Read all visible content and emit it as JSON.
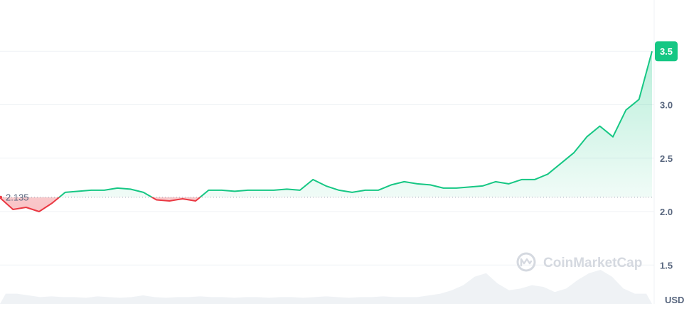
{
  "chart_data": {
    "type": "area",
    "title": "",
    "xlabel": "",
    "ylabel": "",
    "unit_label": "USD",
    "ylim": [
      1.07,
      3.98
    ],
    "yticks": [
      {
        "value": 3.5,
        "label": ""
      },
      {
        "value": 3.0,
        "label": "3.0"
      },
      {
        "value": 2.5,
        "label": "2.5"
      },
      {
        "value": 2.0,
        "label": "2.0"
      },
      {
        "value": 1.5,
        "label": "1.5"
      }
    ],
    "baseline": {
      "value": 2.135,
      "label": "2.135"
    },
    "current_price": {
      "value": 3.5,
      "label": "3.5"
    },
    "grid": true,
    "watermark": "CoinMarketCap",
    "colors": {
      "up": "#16c784",
      "down": "#ea3943",
      "grid": "#eff2f5",
      "axis_text": "#58667e",
      "volume": "#eff2f5",
      "watermark": "#d5d9e0"
    },
    "series": [
      {
        "x": [
          0,
          2,
          4,
          6,
          8,
          10,
          12,
          14,
          16,
          18,
          20,
          22,
          24,
          26,
          28,
          30,
          32,
          34,
          36,
          38,
          40,
          42,
          44,
          46,
          48,
          50,
          52,
          54,
          56,
          58,
          60,
          62,
          64,
          66,
          68,
          70,
          72,
          74,
          76,
          78,
          80,
          82,
          84,
          86,
          88,
          90,
          92,
          94,
          96,
          98,
          100
        ],
        "values": [
          2.13,
          2.02,
          2.04,
          2.0,
          2.08,
          2.18,
          2.19,
          2.2,
          2.2,
          2.22,
          2.21,
          2.18,
          2.11,
          2.1,
          2.12,
          2.1,
          2.2,
          2.2,
          2.19,
          2.2,
          2.2,
          2.2,
          2.21,
          2.2,
          2.3,
          2.24,
          2.2,
          2.18,
          2.2,
          2.2,
          2.25,
          2.28,
          2.26,
          2.25,
          2.22,
          2.22,
          2.23,
          2.24,
          2.28,
          2.26,
          2.3,
          2.3,
          2.35,
          2.45,
          2.55,
          2.7,
          2.8,
          2.7,
          2.95,
          3.05,
          3.5
        ]
      }
    ],
    "volume": [
      0.3,
      0.3,
      0.25,
      0.2,
      0.22,
      0.2,
      0.2,
      0.18,
      0.22,
      0.2,
      0.18,
      0.2,
      0.25,
      0.2,
      0.18,
      0.2,
      0.2,
      0.22,
      0.2,
      0.2,
      0.18,
      0.2,
      0.2,
      0.18,
      0.2,
      0.2,
      0.18,
      0.2,
      0.22,
      0.2,
      0.18,
      0.2,
      0.2,
      0.22,
      0.2,
      0.2,
      0.2,
      0.25,
      0.3,
      0.4,
      0.55,
      0.8,
      0.9,
      0.6,
      0.4,
      0.45,
      0.55,
      0.5,
      0.35,
      0.45,
      0.7,
      0.9,
      1.0,
      0.8,
      0.45,
      0.3,
      0.3
    ]
  }
}
